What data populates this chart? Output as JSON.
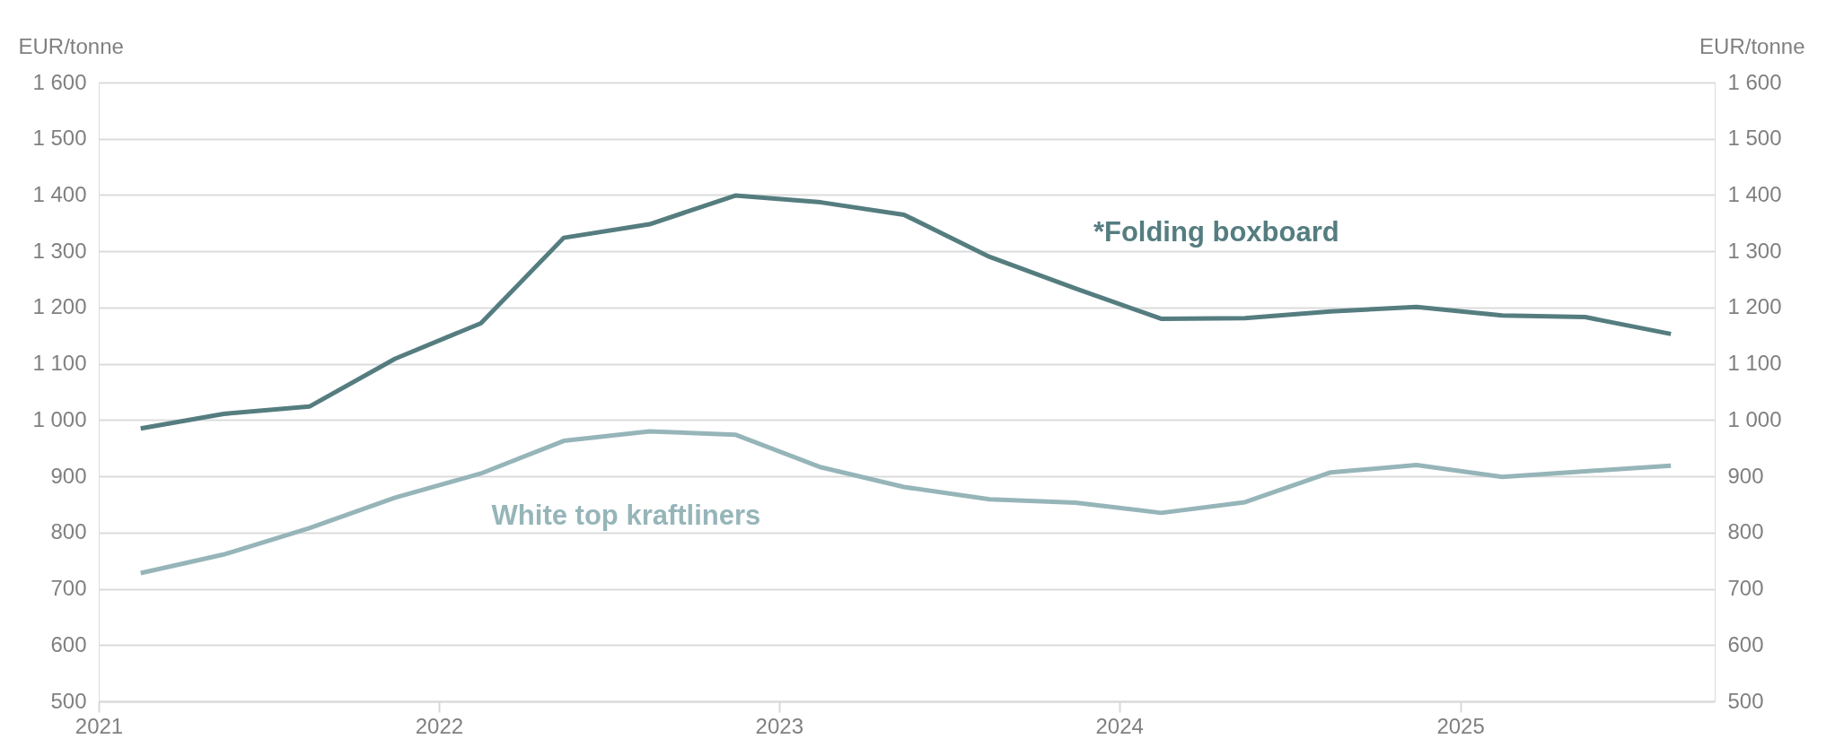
{
  "chart_data": {
    "type": "line",
    "ylabel": "EUR/tonne",
    "y2label": "EUR/tonne",
    "x": [
      "2021-02-15",
      "2021-05-15",
      "2021-08-15",
      "2021-11-15",
      "2022-02-15",
      "2022-05-15",
      "2022-08-15",
      "2022-11-15",
      "2023-02-15",
      "2023-05-15",
      "2023-08-15",
      "2023-11-15",
      "2024-02-15",
      "2024-05-15",
      "2024-08-15",
      "2024-11-15",
      "2025-02-15",
      "2025-05-15",
      "2025-08-15"
    ],
    "series": [
      {
        "name": "*Folding boxboard",
        "color": "#557d80",
        "values": [
          985,
          1011,
          1024,
          1109,
          1172,
          1324,
          1348,
          1399,
          1387,
          1365,
          1290,
          1234,
          1180,
          1181,
          1193,
          1201,
          1186,
          1183,
          1153
        ]
      },
      {
        "name": "White top kraftliners",
        "color": "#96b5b9",
        "values": [
          728,
          761,
          808,
          862,
          905,
          963,
          980,
          974,
          916,
          881,
          859,
          853,
          835,
          854,
          907,
          920,
          899,
          909,
          919
        ]
      }
    ],
    "xlim": [
      "2021-01-01",
      "2025-10-01"
    ],
    "xticks": [
      "2021",
      "2022",
      "2023",
      "2024",
      "2025"
    ],
    "ylim": [
      500,
      1600
    ],
    "yticks": [
      {
        "value": 500,
        "label": "500"
      },
      {
        "value": 600,
        "label": "600"
      },
      {
        "value": 700,
        "label": "700"
      },
      {
        "value": 800,
        "label": "800"
      },
      {
        "value": 900,
        "label": "900"
      },
      {
        "value": 1000,
        "label": "1 000"
      },
      {
        "value": 1100,
        "label": "1 100"
      },
      {
        "value": 1200,
        "label": "1 200"
      },
      {
        "value": 1300,
        "label": "1 300"
      },
      {
        "value": 1400,
        "label": "1 400"
      },
      {
        "value": 1500,
        "label": "1 500"
      },
      {
        "value": 1600,
        "label": "1 600"
      }
    ],
    "y2lim": [
      500,
      1600
    ],
    "y2ticks": [
      {
        "value": 500,
        "label": "500"
      },
      {
        "value": 600,
        "label": "600"
      },
      {
        "value": 700,
        "label": "700"
      },
      {
        "value": 800,
        "label": "800"
      },
      {
        "value": 900,
        "label": "900"
      },
      {
        "value": 1000,
        "label": "1 000"
      },
      {
        "value": 1100,
        "label": "1 100"
      },
      {
        "value": 1200,
        "label": "1 200"
      },
      {
        "value": 1300,
        "label": "1 300"
      },
      {
        "value": 1400,
        "label": "1 400"
      },
      {
        "value": 1500,
        "label": "1 500"
      },
      {
        "value": 1600,
        "label": "1 600"
      }
    ],
    "grid": "y",
    "legend": false,
    "marker": "none",
    "line_style": "solid"
  }
}
